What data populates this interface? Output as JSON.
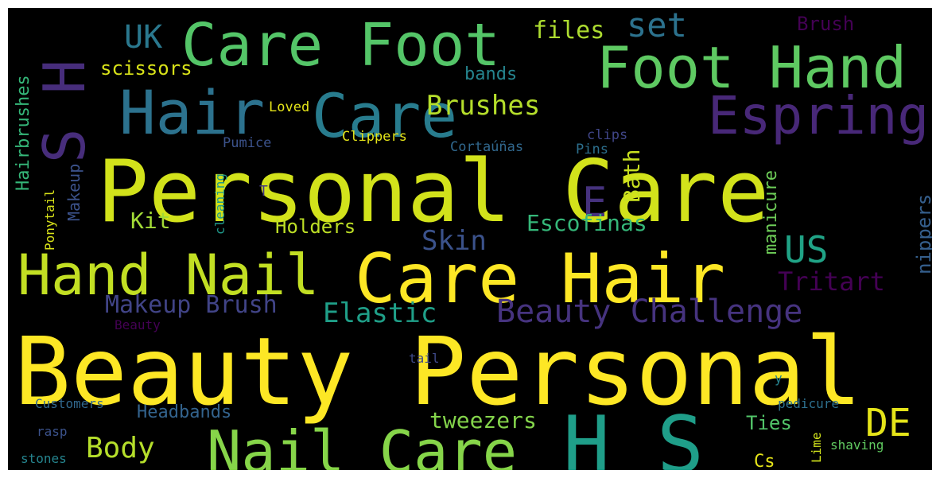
{
  "words": [
    {
      "text": "Beauty Personal",
      "color": "#fde725"
    },
    {
      "text": "Personal Care",
      "color": "#d2e21b"
    },
    {
      "text": "Care Hair",
      "color": "#fde725"
    },
    {
      "text": "Hand Nail",
      "color": "#c2df23"
    },
    {
      "text": "Nail Care",
      "color": "#86d549"
    },
    {
      "text": "Care Foot",
      "color": "#54c568"
    },
    {
      "text": "Foot Hand",
      "color": "#5ec962"
    },
    {
      "text": "Hair",
      "color": "#2c728e"
    },
    {
      "text": "Care",
      "color": "#287c8e"
    },
    {
      "text": "H S",
      "color": "#1f9e89"
    },
    {
      "text": "S H",
      "color": "#472d7b"
    },
    {
      "text": "Espring",
      "color": "#482878"
    },
    {
      "text": "E",
      "color": "#46327e"
    },
    {
      "text": "US",
      "color": "#20a386"
    },
    {
      "text": "DE",
      "color": "#e5e419"
    },
    {
      "text": "UK",
      "color": "#2a788e"
    },
    {
      "text": "set",
      "color": "#2c728e"
    },
    {
      "text": "files",
      "color": "#addc30"
    },
    {
      "text": "Brush",
      "color": "#440154"
    },
    {
      "text": "scissors",
      "color": "#d8e219"
    },
    {
      "text": "bands",
      "color": "#25848e"
    },
    {
      "text": "Brushes",
      "color": "#b5de2b"
    },
    {
      "text": "Loved",
      "color": "#e5e419"
    },
    {
      "text": "Clippers",
      "color": "#e5e419"
    },
    {
      "text": "Pumice",
      "color": "#3b528b"
    },
    {
      "text": "clips",
      "color": "#404688"
    },
    {
      "text": "Cortaúñas",
      "color": "#31688e"
    },
    {
      "text": "Pins",
      "color": "#2d708e"
    },
    {
      "text": "Hairbrushes",
      "color": "#35b779"
    },
    {
      "text": "Makeup",
      "color": "#3b528b"
    },
    {
      "text": "Ponytail",
      "color": "#d8e219"
    },
    {
      "text": "cleaning",
      "color": "#1f998a"
    },
    {
      "text": "T",
      "color": "#443983"
    },
    {
      "text": "Bath",
      "color": "#c8e020"
    },
    {
      "text": "manicure",
      "color": "#6ece58"
    },
    {
      "text": "nippers",
      "color": "#355f8d"
    },
    {
      "text": "Kit",
      "color": "#a2da37"
    },
    {
      "text": "Holders",
      "color": "#bddf26"
    },
    {
      "text": "Escofinas",
      "color": "#35b779"
    },
    {
      "text": "Skin",
      "color": "#3b528b"
    },
    {
      "text": "Tritart",
      "color": "#440154"
    },
    {
      "text": "Makeup Brush",
      "color": "#414487"
    },
    {
      "text": "Elastic",
      "color": "#1f9f88"
    },
    {
      "text": "Beauty Challenge",
      "color": "#46337f"
    },
    {
      "text": "Beauty",
      "color": "#440154"
    },
    {
      "text": "tail",
      "color": "#3e4a89"
    },
    {
      "text": "y",
      "color": "#26828e"
    },
    {
      "text": "Customers",
      "color": "#31688e"
    },
    {
      "text": "Headbands",
      "color": "#33638d"
    },
    {
      "text": "tweezers",
      "color": "#84d44b"
    },
    {
      "text": "pedicure",
      "color": "#2d708e"
    },
    {
      "text": "Body",
      "color": "#b5de2b"
    },
    {
      "text": "rasp",
      "color": "#3b528b"
    },
    {
      "text": "Ties",
      "color": "#52c569"
    },
    {
      "text": "Lime",
      "color": "#d0e11c"
    },
    {
      "text": "shaving",
      "color": "#60ca60"
    },
    {
      "text": "stones",
      "color": "#25848e"
    },
    {
      "text": "Cs",
      "color": "#e5e419"
    }
  ]
}
